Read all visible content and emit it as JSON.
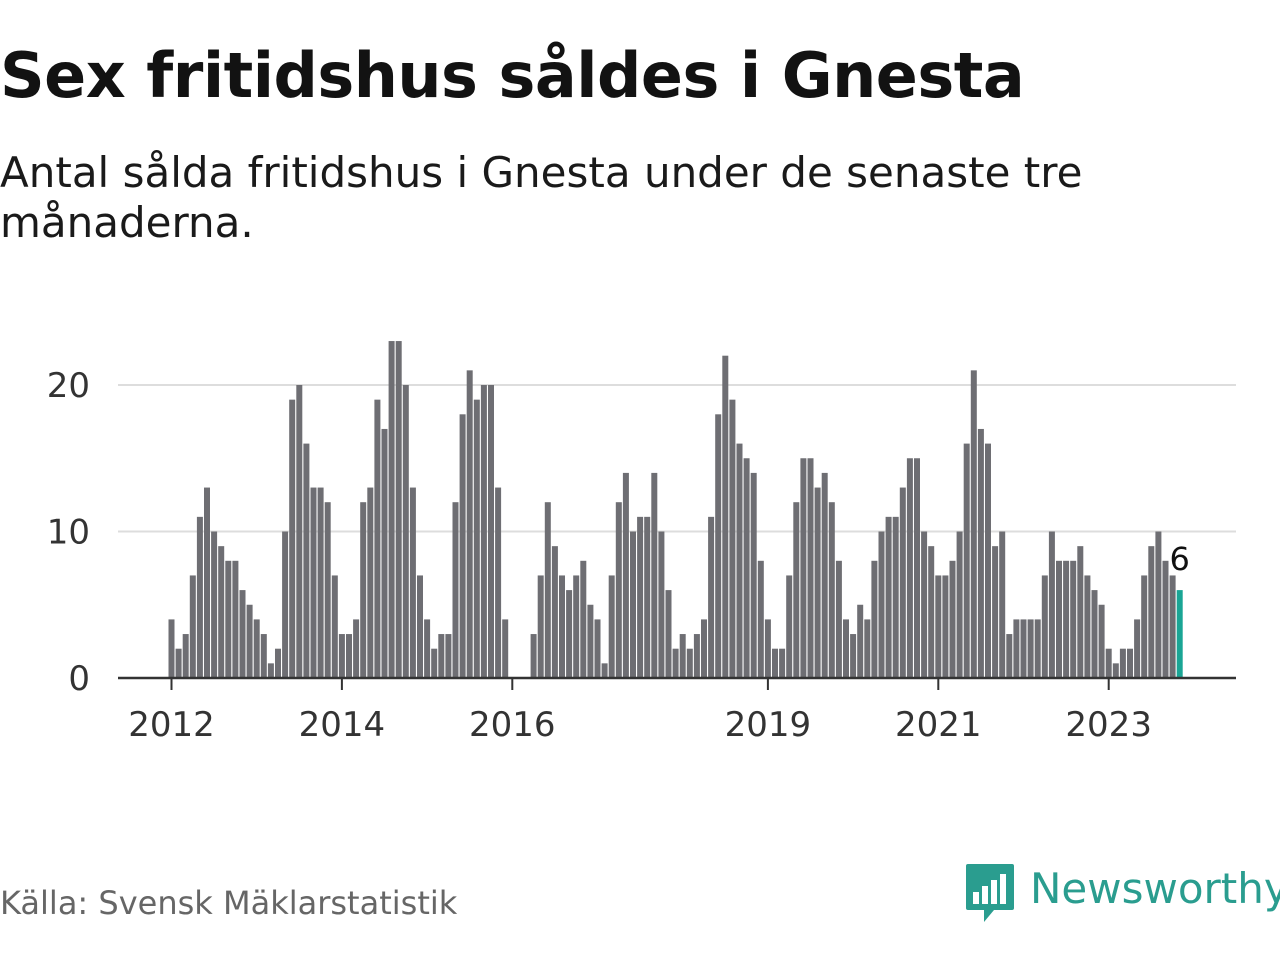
{
  "header": {
    "title": "Sex fritidshus såldes i Gnesta",
    "subtitle": "Antal sålda fritidshus i Gnesta under de senaste tre månaderna."
  },
  "footer": {
    "source": "Källa: Svensk Mäklarstatistik",
    "brand": "Newsworthy"
  },
  "colors": {
    "bar": "#6e6e73",
    "highlight": "#1aa595",
    "grid": "#dddddd",
    "axis": "#333333",
    "brand": "#2a9d8f"
  },
  "icons": {
    "logo": "newsworthy-bar-chart-icon"
  },
  "chart_data": {
    "type": "bar",
    "title": "Sex fritidshus såldes i Gnesta",
    "subtitle": "Antal sålda fritidshus i Gnesta under de senaste tre månaderna.",
    "xlabel": "",
    "ylabel": "",
    "ylim": [
      0,
      23
    ],
    "yticks": [
      0,
      10,
      20
    ],
    "grid": true,
    "legend": "none",
    "x_start": "2012-01",
    "x_end": "2023-12",
    "x_ticks": [
      {
        "label": "2012",
        "date": "2012-01"
      },
      {
        "label": "2014",
        "date": "2014-01"
      },
      {
        "label": "2016",
        "date": "2016-01"
      },
      {
        "label": "2019",
        "date": "2019-01"
      },
      {
        "label": "2021",
        "date": "2021-01"
      },
      {
        "label": "2023",
        "date": "2023-01"
      }
    ],
    "categories": [
      "2012-01",
      "2012-02",
      "2012-03",
      "2012-04",
      "2012-05",
      "2012-06",
      "2012-07",
      "2012-08",
      "2012-09",
      "2012-10",
      "2012-11",
      "2012-12",
      "2013-01",
      "2013-02",
      "2013-03",
      "2013-04",
      "2013-05",
      "2013-06",
      "2013-07",
      "2013-08",
      "2013-09",
      "2013-10",
      "2013-11",
      "2013-12",
      "2014-01",
      "2014-02",
      "2014-03",
      "2014-04",
      "2014-05",
      "2014-06",
      "2014-07",
      "2014-08",
      "2014-09",
      "2014-10",
      "2014-11",
      "2014-12",
      "2015-01",
      "2015-02",
      "2015-03",
      "2015-04",
      "2015-05",
      "2015-06",
      "2015-07",
      "2015-08",
      "2015-09",
      "2015-10",
      "2015-11",
      "2015-12",
      "2016-01",
      "2016-02",
      "2016-03",
      "2016-04",
      "2016-05",
      "2016-06",
      "2016-07",
      "2016-08",
      "2016-09",
      "2016-10",
      "2016-11",
      "2016-12",
      "2017-01",
      "2017-02",
      "2017-03",
      "2017-04",
      "2017-05",
      "2017-06",
      "2017-07",
      "2017-08",
      "2017-09",
      "2017-10",
      "2017-11",
      "2017-12",
      "2018-01",
      "2018-02",
      "2018-03",
      "2018-04",
      "2018-05",
      "2018-06",
      "2018-07",
      "2018-08",
      "2018-09",
      "2018-10",
      "2018-11",
      "2018-12",
      "2019-01",
      "2019-02",
      "2019-03",
      "2019-04",
      "2019-05",
      "2019-06",
      "2019-07",
      "2019-08",
      "2019-09",
      "2019-10",
      "2019-11",
      "2019-12",
      "2020-01",
      "2020-02",
      "2020-03",
      "2020-04",
      "2020-05",
      "2020-06",
      "2020-07",
      "2020-08",
      "2020-09",
      "2020-10",
      "2020-11",
      "2020-12",
      "2021-01",
      "2021-02",
      "2021-03",
      "2021-04",
      "2021-05",
      "2021-06",
      "2021-07",
      "2021-08",
      "2021-09",
      "2021-10",
      "2021-11",
      "2021-12",
      "2022-01",
      "2022-02",
      "2022-03",
      "2022-04",
      "2022-05",
      "2022-06",
      "2022-07",
      "2022-08",
      "2022-09",
      "2022-10",
      "2022-11",
      "2022-12",
      "2023-01",
      "2023-02",
      "2023-03",
      "2023-04",
      "2023-05",
      "2023-06",
      "2023-07",
      "2023-08",
      "2023-09",
      "2023-10",
      "2023-11",
      "2023-12"
    ],
    "values": [
      4,
      2,
      3,
      7,
      11,
      13,
      10,
      9,
      8,
      8,
      6,
      5,
      4,
      3,
      1,
      2,
      10,
      19,
      20,
      16,
      13,
      13,
      12,
      7,
      3,
      3,
      4,
      12,
      13,
      19,
      17,
      23,
      23,
      20,
      13,
      7,
      4,
      2,
      3,
      3,
      12,
      18,
      21,
      19,
      20,
      20,
      13,
      4,
      0,
      0,
      0,
      3,
      7,
      12,
      9,
      7,
      6,
      7,
      8,
      5,
      4,
      1,
      7,
      12,
      14,
      10,
      11,
      11,
      14,
      10,
      6,
      2,
      3,
      2,
      3,
      4,
      11,
      18,
      22,
      19,
      16,
      15,
      14,
      8,
      4,
      2,
      2,
      7,
      12,
      15,
      15,
      13,
      14,
      12,
      8,
      4,
      3,
      5,
      4,
      8,
      10,
      11,
      11,
      13,
      15,
      15,
      10,
      9,
      7,
      7,
      8,
      10,
      16,
      21,
      17,
      16,
      9,
      10,
      3,
      4,
      4,
      4,
      4,
      7,
      10,
      8,
      8,
      8,
      9,
      7,
      6,
      5,
      2,
      1,
      2,
      2,
      4,
      7,
      9,
      10,
      8,
      7,
      6,
      null
    ],
    "highlight": {
      "category": "2023-11",
      "value": 6,
      "label": "6"
    }
  }
}
